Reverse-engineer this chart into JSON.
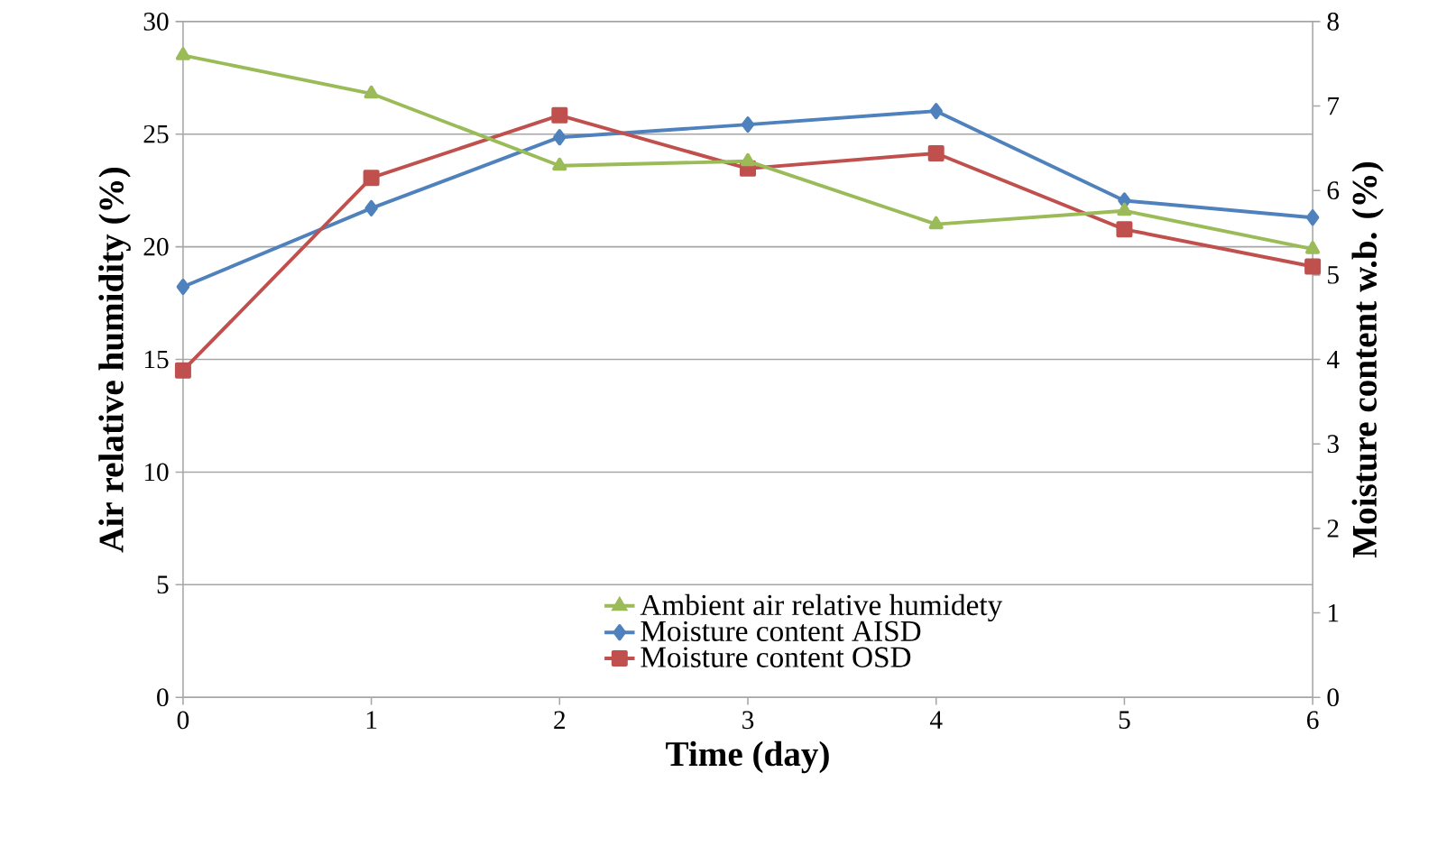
{
  "chart_data": {
    "type": "line",
    "xlabel": "Time (day)",
    "ylabel": "Air relative humidity (%)",
    "y2label": "Moisture content w.b. (%)",
    "x": [
      0,
      1,
      2,
      3,
      4,
      5,
      6
    ],
    "xlim": [
      0,
      6
    ],
    "xticks": [
      0,
      1,
      2,
      3,
      4,
      5,
      6
    ],
    "ylim": [
      0,
      30
    ],
    "yticks": [
      0,
      5,
      10,
      15,
      20,
      25,
      30
    ],
    "y2lim": [
      0,
      8
    ],
    "y2ticks": [
      0,
      1,
      2,
      3,
      4,
      5,
      6,
      7,
      8
    ],
    "grid": "y",
    "legend": "bottom",
    "line_style": "solid",
    "series": [
      {
        "name": "Ambient air relative  humidety",
        "color": "#9bbb59",
        "marker": "triangle",
        "values": [
          28.5,
          26.8,
          23.6,
          23.8,
          21.0,
          21.6,
          19.9
        ]
      },
      {
        "name": "Moisture content AISD",
        "color": "#4f81bd",
        "marker": "diamond",
        "axis": "y2",
        "values": [
          4.86,
          5.79,
          6.63,
          6.78,
          6.94,
          5.88,
          5.68
        ]
      },
      {
        "name": "Moisture content OSD",
        "color": "#c0504d",
        "marker": "square",
        "axis": "y2",
        "values": [
          3.87,
          6.15,
          6.89,
          6.26,
          6.44,
          5.54,
          5.1
        ]
      }
    ]
  }
}
